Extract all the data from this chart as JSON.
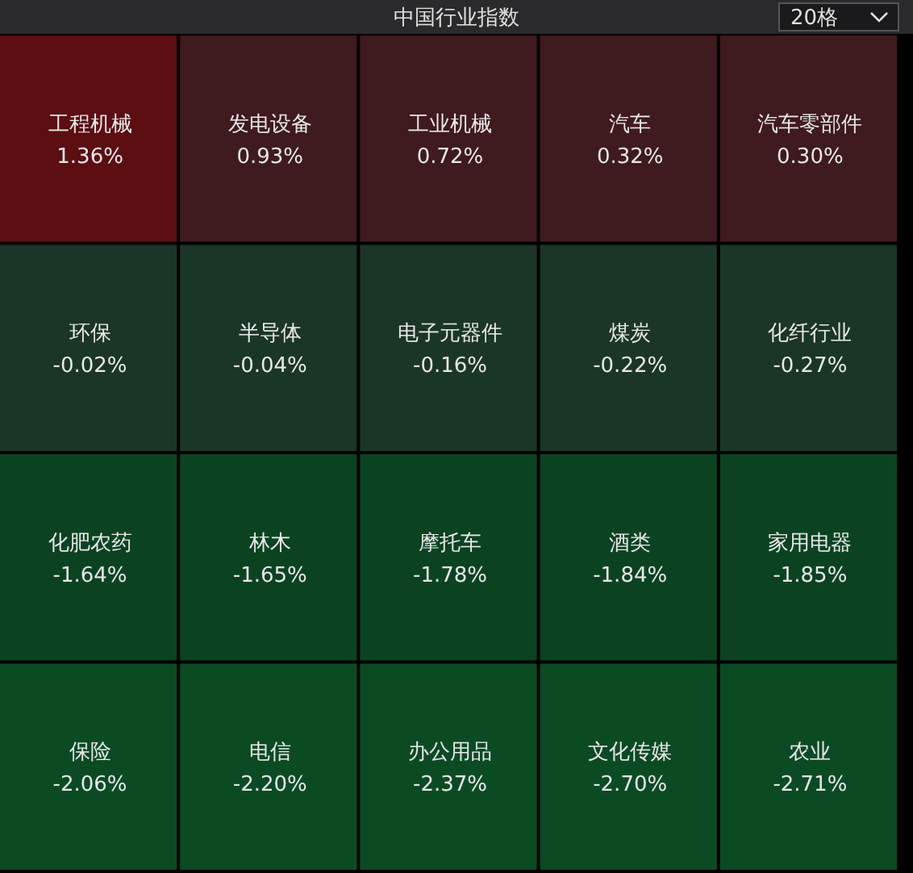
{
  "chart_data": {
    "type": "other",
    "title": "中国行业指数",
    "categories": [
      "工程机械",
      "发电设备",
      "工业机械",
      "汽车",
      "汽车零部件",
      "环保",
      "半导体",
      "电子元器件",
      "煤炭",
      "化纤行业",
      "化肥农药",
      "林木",
      "摩托车",
      "酒类",
      "家用电器",
      "保险",
      "电信",
      "办公用品",
      "文化传媒",
      "农业"
    ],
    "values": [
      1.36,
      0.93,
      0.72,
      0.32,
      0.3,
      -0.02,
      -0.04,
      -0.16,
      -0.22,
      -0.27,
      -1.64,
      -1.65,
      -1.78,
      -1.84,
      -1.85,
      -2.06,
      -2.2,
      -2.37,
      -2.7,
      -2.71
    ],
    "value_labels": [
      "1.36%",
      "0.93%",
      "0.72%",
      "0.32%",
      "0.30%",
      "-0.02%",
      "-0.04%",
      "-0.16%",
      "-0.22%",
      "-0.27%",
      "-1.64%",
      "-1.65%",
      "-1.78%",
      "-1.84%",
      "-1.85%",
      "-2.06%",
      "-2.20%",
      "-2.37%",
      "-2.70%",
      "-2.71%"
    ],
    "colors": [
      "#5c0e12",
      "#3f1a1f",
      "#3f1a1f",
      "#3f1a1f",
      "#3f1a1f",
      "#1b3626",
      "#1b3626",
      "#1b3626",
      "#1b3626",
      "#1b3626",
      "#0b4321",
      "#0b4321",
      "#0b4321",
      "#0b4321",
      "#0b4321",
      "#0b4b24",
      "#0b4b24",
      "#0b4b24",
      "#0b4b24",
      "#0b4b24"
    ],
    "annotations": [
      "20格"
    ]
  }
}
